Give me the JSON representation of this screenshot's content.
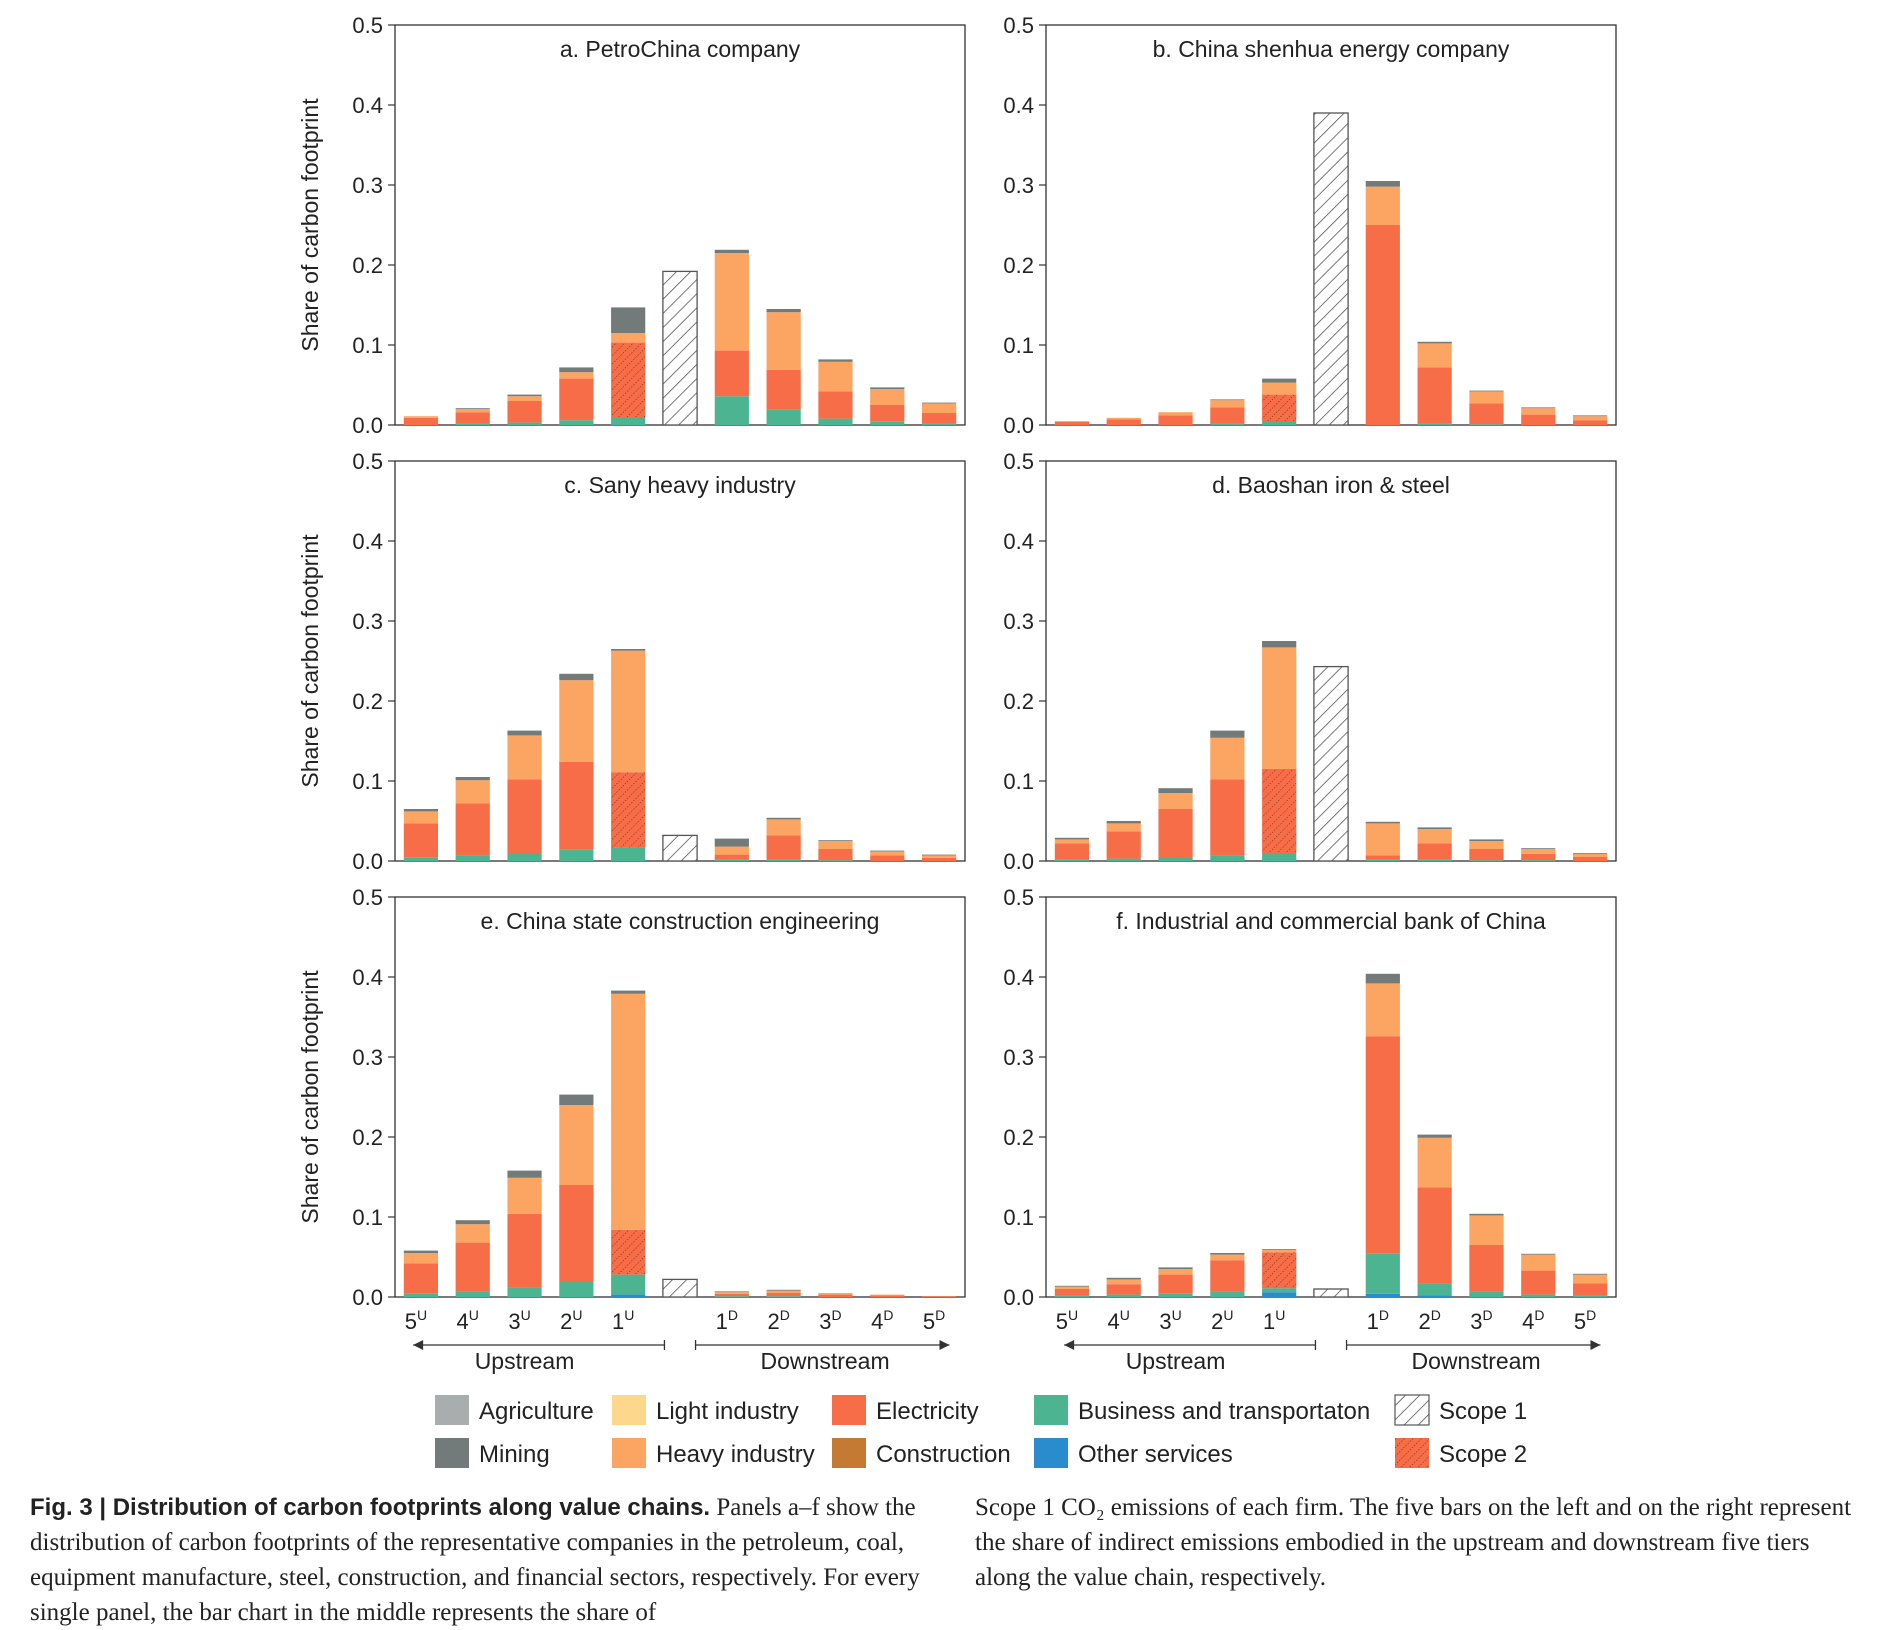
{
  "chart_data": {
    "type": "bar",
    "stacked": true,
    "ylabel": "Share of carbon footprint",
    "ylim": [
      0,
      0.5
    ],
    "yticks": [
      "0.0",
      "0.1",
      "0.2",
      "0.3",
      "0.4",
      "0.5"
    ],
    "categories": [
      {
        "base": "5",
        "sup": "U"
      },
      {
        "base": "4",
        "sup": "U"
      },
      {
        "base": "3",
        "sup": "U"
      },
      {
        "base": "2",
        "sup": "U"
      },
      {
        "base": "1",
        "sup": "U"
      },
      {
        "base": "",
        "sup": ""
      },
      {
        "base": "1",
        "sup": "D"
      },
      {
        "base": "2",
        "sup": "D"
      },
      {
        "base": "3",
        "sup": "D"
      },
      {
        "base": "4",
        "sup": "D"
      },
      {
        "base": "5",
        "sup": "D"
      }
    ],
    "upstream_label": "Upstream",
    "downstream_label": "Downstream",
    "series_order": [
      "Other services",
      "Business and transportaton",
      "Electricity",
      "Construction",
      "Heavy industry",
      "Light industry",
      "Mining",
      "Agriculture"
    ],
    "colors": {
      "Agriculture": "#a9adae",
      "Mining": "#727a7a",
      "Light industry": "#fdd88c",
      "Heavy industry": "#fca563",
      "Electricity": "#f66d48",
      "Construction": "#c57a34",
      "Business and transportaton": "#4cb491",
      "Other services": "#2a8ccd",
      "Scope 1": "hatch",
      "Scope 2": "#f66d48"
    },
    "legend": [
      [
        "Agriculture",
        "Light industry",
        "Electricity",
        "Business and transportaton",
        "Scope 1"
      ],
      [
        "Mining",
        "Heavy industry",
        "Construction",
        "Other services",
        "Scope 2"
      ]
    ],
    "panels": [
      {
        "title": "a. PetroChina company",
        "scope1": 0.192,
        "bars": [
          {
            "Electricity": 0.009,
            "Heavy industry": 0.002
          },
          {
            "Business and transportaton": 0.002,
            "Electricity": 0.014,
            "Heavy industry": 0.004,
            "Mining": 0.001
          },
          {
            "Business and transportaton": 0.003,
            "Electricity": 0.027,
            "Heavy industry": 0.006,
            "Mining": 0.002
          },
          {
            "Business and transportaton": 0.006,
            "Electricity": 0.052,
            "Heavy industry": 0.008,
            "Mining": 0.006
          },
          {
            "Business and transportaton": 0.01,
            "Scope 2": 0.093,
            "Heavy industry": 0.012,
            "Mining": 0.032
          },
          null,
          {
            "Business and transportaton": 0.036,
            "Electricity": 0.057,
            "Heavy industry": 0.122,
            "Mining": 0.004
          },
          {
            "Business and transportaton": 0.019,
            "Electricity": 0.05,
            "Heavy industry": 0.072,
            "Mining": 0.004
          },
          {
            "Business and transportaton": 0.008,
            "Electricity": 0.034,
            "Heavy industry": 0.037,
            "Mining": 0.003
          },
          {
            "Business and transportaton": 0.004,
            "Electricity": 0.021,
            "Heavy industry": 0.02,
            "Mining": 0.002
          },
          {
            "Business and transportaton": 0.002,
            "Electricity": 0.013,
            "Heavy industry": 0.012,
            "Mining": 0.001
          }
        ]
      },
      {
        "title": "b. China shenhua energy company",
        "scope1": 0.39,
        "bars": [
          {
            "Electricity": 0.004,
            "Heavy industry": 0.001
          },
          {
            "Electricity": 0.007,
            "Heavy industry": 0.002
          },
          {
            "Electricity": 0.012,
            "Heavy industry": 0.004
          },
          {
            "Business and transportaton": 0.002,
            "Electricity": 0.02,
            "Heavy industry": 0.009,
            "Mining": 0.001
          },
          {
            "Business and transportaton": 0.005,
            "Scope 2": 0.033,
            "Heavy industry": 0.015,
            "Mining": 0.005
          },
          null,
          {
            "Electricity": 0.25,
            "Heavy industry": 0.048,
            "Mining": 0.007
          },
          {
            "Business and transportaton": 0.002,
            "Electricity": 0.07,
            "Heavy industry": 0.03,
            "Mining": 0.002
          },
          {
            "Business and transportaton": 0.001,
            "Electricity": 0.026,
            "Heavy industry": 0.015,
            "Mining": 0.001
          },
          {
            "Electricity": 0.013,
            "Heavy industry": 0.008,
            "Mining": 0.001
          },
          {
            "Electricity": 0.006,
            "Heavy industry": 0.005,
            "Mining": 0.001
          }
        ]
      },
      {
        "title": "c. Sany heavy industry",
        "scope1": 0.032,
        "bars": [
          {
            "Business and transportaton": 0.004,
            "Electricity": 0.043,
            "Heavy industry": 0.015,
            "Mining": 0.003
          },
          {
            "Business and transportaton": 0.007,
            "Electricity": 0.065,
            "Heavy industry": 0.029,
            "Mining": 0.004
          },
          {
            "Business and transportaton": 0.01,
            "Electricity": 0.092,
            "Heavy industry": 0.055,
            "Mining": 0.006
          },
          {
            "Business and transportaton": 0.014,
            "Electricity": 0.11,
            "Heavy industry": 0.102,
            "Mining": 0.008
          },
          {
            "Business and transportaton": 0.017,
            "Scope 2": 0.094,
            "Heavy industry": 0.152,
            "Mining": 0.002
          },
          null,
          {
            "Business and transportaton": 0.002,
            "Electricity": 0.006,
            "Heavy industry": 0.01,
            "Mining": 0.01
          },
          {
            "Business and transportaton": 0.002,
            "Electricity": 0.03,
            "Heavy industry": 0.02,
            "Mining": 0.002
          },
          {
            "Business and transportaton": 0.001,
            "Electricity": 0.014,
            "Heavy industry": 0.01,
            "Mining": 0.001
          },
          {
            "Electricity": 0.007,
            "Heavy industry": 0.005,
            "Mining": 0.001
          },
          {
            "Electricity": 0.004,
            "Heavy industry": 0.003,
            "Mining": 0.001
          }
        ]
      },
      {
        "title": "d. Baoshan iron & steel",
        "scope1": 0.243,
        "bars": [
          {
            "Business and transportaton": 0.002,
            "Electricity": 0.02,
            "Heavy industry": 0.005,
            "Mining": 0.002
          },
          {
            "Business and transportaton": 0.003,
            "Electricity": 0.034,
            "Heavy industry": 0.01,
            "Mining": 0.003
          },
          {
            "Business and transportaton": 0.005,
            "Electricity": 0.06,
            "Heavy industry": 0.02,
            "Mining": 0.006
          },
          {
            "Business and transportaton": 0.007,
            "Electricity": 0.095,
            "Heavy industry": 0.052,
            "Mining": 0.009
          },
          {
            "Business and transportaton": 0.01,
            "Scope 2": 0.105,
            "Heavy industry": 0.152,
            "Mining": 0.008
          },
          null,
          {
            "Business and transportaton": 0.002,
            "Electricity": 0.005,
            "Heavy industry": 0.04,
            "Mining": 0.002
          },
          {
            "Business and transportaton": 0.002,
            "Electricity": 0.02,
            "Heavy industry": 0.018,
            "Mining": 0.002
          },
          {
            "Business and transportaton": 0.001,
            "Electricity": 0.014,
            "Heavy industry": 0.01,
            "Mining": 0.002
          },
          {
            "Business and transportaton": 0.001,
            "Electricity": 0.008,
            "Heavy industry": 0.006,
            "Mining": 0.001
          },
          {
            "Electricity": 0.005,
            "Heavy industry": 0.004,
            "Mining": 0.001
          }
        ]
      },
      {
        "title": "e. China state construction engineering",
        "scope1": 0.022,
        "bars": [
          {
            "Business and transportaton": 0.004,
            "Electricity": 0.038,
            "Heavy industry": 0.013,
            "Mining": 0.003
          },
          {
            "Business and transportaton": 0.007,
            "Electricity": 0.061,
            "Heavy industry": 0.023,
            "Mining": 0.005
          },
          {
            "Business and transportaton": 0.012,
            "Electricity": 0.092,
            "Heavy industry": 0.045,
            "Mining": 0.009
          },
          {
            "Business and transportaton": 0.02,
            "Electricity": 0.12,
            "Heavy industry": 0.1,
            "Mining": 0.013
          },
          {
            "Other services": 0.003,
            "Business and transportaton": 0.025,
            "Scope 2": 0.056,
            "Heavy industry": 0.295,
            "Mining": 0.004
          },
          null,
          {
            "Business and transportaton": 0.001,
            "Electricity": 0.003,
            "Heavy industry": 0.002,
            "Mining": 0.001
          },
          {
            "Business and transportaton": 0.001,
            "Electricity": 0.004,
            "Heavy industry": 0.003,
            "Mining": 0.001
          },
          {
            "Electricity": 0.003,
            "Heavy industry": 0.002
          },
          {
            "Electricity": 0.002,
            "Heavy industry": 0.001
          },
          {
            "Electricity": 0.001
          }
        ]
      },
      {
        "title": "f. Industrial and commercial bank of China",
        "scope1": 0.01,
        "bars": [
          {
            "Business and transportaton": 0.002,
            "Electricity": 0.008,
            "Heavy industry": 0.003,
            "Mining": 0.001
          },
          {
            "Business and transportaton": 0.003,
            "Electricity": 0.013,
            "Heavy industry": 0.006,
            "Mining": 0.002
          },
          {
            "Business and transportaton": 0.004,
            "Electricity": 0.024,
            "Heavy industry": 0.007,
            "Mining": 0.002
          },
          {
            "Business and transportaton": 0.007,
            "Electricity": 0.039,
            "Heavy industry": 0.007,
            "Mining": 0.002
          },
          {
            "Other services": 0.006,
            "Business and transportaton": 0.005,
            "Scope 2": 0.045,
            "Heavy industry": 0.003,
            "Mining": 0.001
          },
          null,
          {
            "Other services": 0.004,
            "Business and transportaton": 0.05,
            "Electricity": 0.272,
            "Heavy industry": 0.066,
            "Mining": 0.012
          },
          {
            "Other services": 0.002,
            "Business and transportaton": 0.015,
            "Electricity": 0.12,
            "Heavy industry": 0.062,
            "Mining": 0.004
          },
          {
            "Business and transportaton": 0.007,
            "Electricity": 0.058,
            "Heavy industry": 0.037,
            "Mining": 0.002
          },
          {
            "Business and transportaton": 0.003,
            "Electricity": 0.03,
            "Heavy industry": 0.02,
            "Mining": 0.001
          },
          {
            "Business and transportaton": 0.002,
            "Electricity": 0.015,
            "Heavy industry": 0.011,
            "Mining": 0.001
          }
        ]
      }
    ]
  },
  "caption": {
    "fig_label": "Fig. 3 | Distribution of carbon footprints along value chains.",
    "left_text": " Panels a–f show the distribution of carbon footprints of the representative companies in the petroleum, coal, equipment manufacture, steel, construction, and financial sectors, respectively. For every single panel, the bar chart in the middle represents the share of",
    "right_text": "Scope 1 CO₂ emissions of each firm. The five bars on the left and on the right represent the share of indirect emissions embodied in the upstream and downstream five tiers along the value chain, respectively."
  }
}
